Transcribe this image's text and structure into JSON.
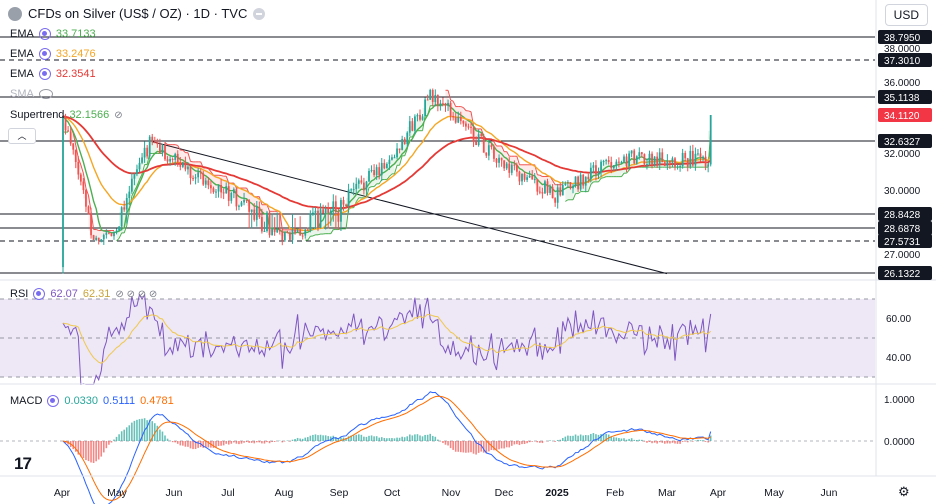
{
  "header": {
    "title": "CFDs on Silver (US$ / OZ) · 1D · TVC",
    "currency": "USD"
  },
  "indicators": {
    "ema1": {
      "label": "EMA",
      "value": "33.7133",
      "color": "#4caf50"
    },
    "ema2": {
      "label": "EMA",
      "value": "33.2476",
      "color": "#f5a623"
    },
    "ema3": {
      "label": "EMA",
      "value": "32.3541",
      "color": "#e53935"
    },
    "sma": {
      "label": "SMA"
    },
    "supertrend": {
      "label": "Supertrend",
      "value": "32.1566",
      "color": "#4caf50"
    },
    "rsi": {
      "label": "RSI",
      "value1": "62.07",
      "value2": "62.31"
    },
    "macd": {
      "label": "MACD",
      "value1": "0.0330",
      "value2": "0.5111",
      "value3": "0.4781"
    }
  },
  "price_axis": {
    "ticks": [
      "38.0000",
      "36.0000",
      "32.0000",
      "30.0000",
      "27.0000"
    ],
    "level_labels": [
      "38.7950",
      "37.3010",
      "35.1138",
      "34.1120",
      "32.6327",
      "28.8428",
      "28.6878",
      "27.5731",
      "26.1322"
    ],
    "rsi_ticks": [
      "60.00",
      "40.00"
    ],
    "macd_ticks": [
      "1.0000",
      "0.0000"
    ]
  },
  "time_axis": [
    "Apr",
    "May",
    "Jun",
    "Jul",
    "Aug",
    "Sep",
    "Oct",
    "Nov",
    "Dec",
    "2025",
    "Feb",
    "Mar",
    "Apr",
    "May",
    "Jun"
  ],
  "colors": {
    "up": "#26a69a",
    "down": "#ef5350",
    "current": "#f23645",
    "rsi": "#7e57c2",
    "rsi_ma": "#f0c84b",
    "rsi_band": "#ede7f6",
    "macd": "#2962ff",
    "signal": "#ff6d00"
  },
  "chart_data": {
    "type": "candlestick",
    "title": "CFDs on Silver (US$ / OZ) · 1D · TVC",
    "x": [
      "Apr",
      "May",
      "Jun",
      "Jul",
      "Aug",
      "Sep",
      "Oct",
      "Nov",
      "Dec",
      "2025",
      "Feb",
      "Mar",
      "Apr"
    ],
    "close": [
      26.5,
      28.6,
      31.6,
      29.8,
      27.9,
      29.2,
      31.8,
      34.3,
      31.2,
      29.7,
      31.7,
      31.7,
      34.1
    ],
    "horizontal_levels": [
      38.795,
      37.301,
      35.1138,
      32.6327,
      28.8428,
      28.6878,
      27.5731,
      26.1322
    ],
    "current_price": 34.112,
    "ylim": [
      26.0,
      39.2
    ],
    "trendline": {
      "from": [
        "May",
        32.6
      ],
      "to": [
        "Mar",
        26.1
      ]
    },
    "ema_values": [
      33.7133,
      33.2476,
      32.3541
    ],
    "supertrend_value": 32.1566,
    "rsi": {
      "value": 62.07,
      "ma": 62.31,
      "ticks": [
        60,
        40
      ],
      "range": [
        30,
        70
      ]
    },
    "macd": {
      "histogram": 0.033,
      "macd": 0.5111,
      "signal": 0.4781,
      "ticks": [
        1.0,
        0.0
      ]
    }
  }
}
